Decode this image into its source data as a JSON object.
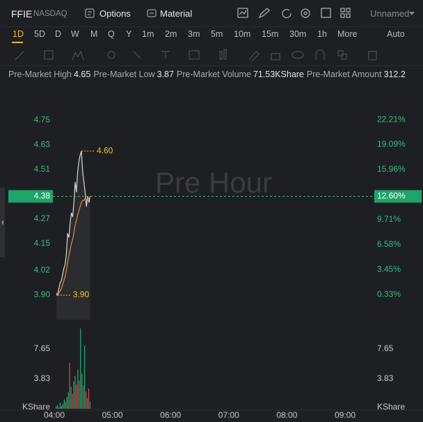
{
  "header": {
    "symbol": "FFIE",
    "exchange": "NASDAQ",
    "options": "Options",
    "material": "Material",
    "layout": "Unnamed"
  },
  "timeframes": [
    "1D",
    "5D",
    "D",
    "W",
    "M",
    "Q",
    "Y",
    "1m",
    "2m",
    "3m",
    "5m",
    "10m",
    "15m",
    "30m",
    "1h",
    "More"
  ],
  "mode": "Auto",
  "stats": [
    {
      "label": "Pre-Market High",
      "value": "4.65"
    },
    {
      "label": "Pre-Market Low",
      "value": "3.87"
    },
    {
      "label": "Pre-Market Volume",
      "value": "71.53KShare"
    },
    {
      "label": "Pre-Market Amount",
      "value": "312.2"
    }
  ],
  "chart_data": {
    "type": "line",
    "watermark": "Pre Hour",
    "xticks": [
      "04:00",
      "05:00",
      "06:00",
      "07:00",
      "08:00",
      "09:00"
    ],
    "ylim": [
      3.78,
      4.895
    ],
    "yticks": [
      4.75,
      4.63,
      4.51,
      4.27,
      4.15,
      4.02,
      {
        "value": 3.9,
        "label": "3.90"
      }
    ],
    "y2lim": [
      -2.8,
      25.87
    ],
    "y2ticks": [
      {
        "value": 22.21,
        "label": "22.21%"
      },
      {
        "value": 19.09,
        "label": "19.09%"
      },
      {
        "value": 15.96,
        "label": "15.96%"
      },
      {
        "value": 9.71,
        "label": "9.71%"
      },
      {
        "value": 6.58,
        "label": "6.58%"
      },
      {
        "value": 3.45,
        "label": "3.45%"
      },
      {
        "value": 0.33,
        "label": "0.33%"
      }
    ],
    "current": {
      "value": 4.38,
      "change": {
        "value": 12.6,
        "label": "12.60%"
      }
    },
    "series": [
      {
        "color": "#d8d8d8",
        "values": [
          3.91,
          3.9,
          3.93,
          3.96,
          3.97,
          4.0,
          4.03,
          4.05,
          4.1,
          4.2,
          4.18,
          4.25,
          4.3,
          4.28,
          4.35,
          4.45,
          4.4,
          4.5,
          4.55,
          4.58,
          4.6,
          4.5,
          4.45,
          4.4,
          4.33,
          4.38,
          4.35,
          4.38
        ]
      },
      {
        "color": "#e8892b",
        "values": [
          3.9,
          3.9,
          3.91,
          3.92,
          3.93,
          3.95,
          3.97,
          3.99,
          4.02,
          4.06,
          4.09,
          4.12,
          4.15,
          4.17,
          4.2,
          4.24,
          4.26,
          4.29,
          4.31,
          4.33,
          4.35,
          4.36,
          4.36,
          4.37,
          4.36,
          4.37,
          4.37,
          4.38
        ]
      }
    ],
    "annotations": [
      {
        "value": 4.6,
        "label": "4.60"
      },
      {
        "value": 3.9,
        "label": "3.90"
      }
    ],
    "volume": {
      "unit": "KShare",
      "ylim": [
        0,
        10.5
      ],
      "yticks": [
        7.65,
        3.83
      ],
      "values": [
        0.3,
        0.5,
        0.2,
        0.8,
        0.4,
        0.6,
        1.2,
        0.9,
        1.5,
        2.1,
        5.9,
        2.8,
        1.9,
        3.5,
        4.2,
        3.1,
        5.0,
        3.6,
        10.3,
        4.5,
        3.0,
        8.1,
        2.2,
        1.4,
        2.6,
        0.9
      ],
      "colors": [
        "#1fa46b",
        "#1fa46b",
        "#d9434b",
        "#1fa46b",
        "#d9434b",
        "#1fa46b",
        "#1fa46b",
        "#d9434b",
        "#1fa46b",
        "#1fa46b",
        "#d9434b",
        "#1fa46b",
        "#d9434b",
        "#1fa46b",
        "#1fa46b",
        "#d9434b",
        "#1fa46b",
        "#d9434b",
        "#1fa46b",
        "#1fa46b",
        "#d9434b",
        "#1fa46b",
        "#d9434b",
        "#1fa46b",
        "#d9434b",
        "#1fa46b"
      ]
    }
  }
}
